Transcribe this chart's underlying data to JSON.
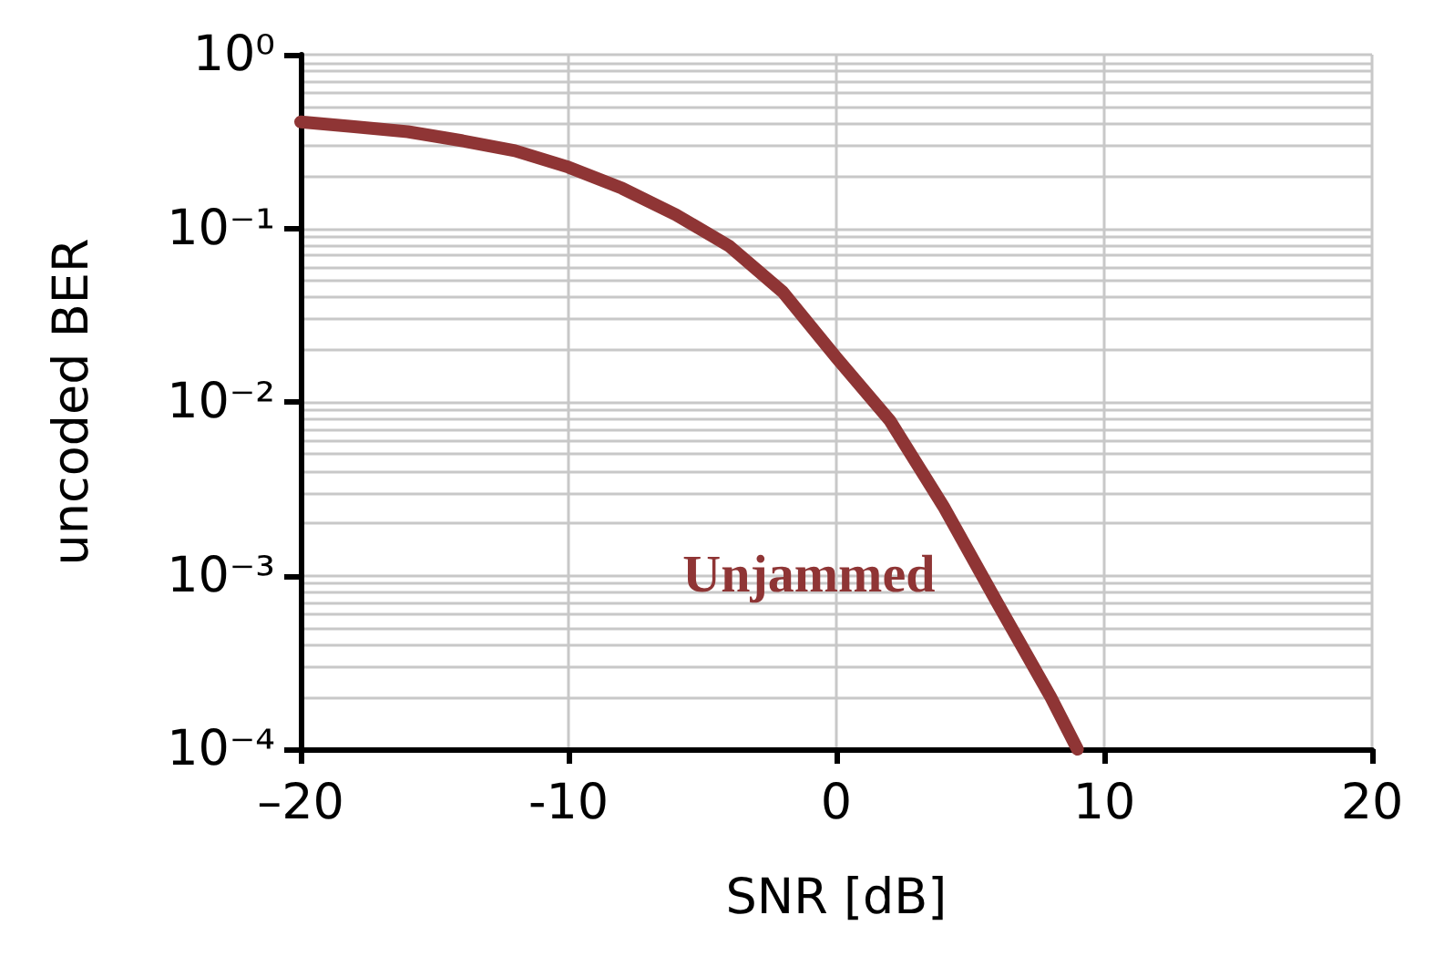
{
  "chart_data": {
    "type": "line",
    "xlabel": "SNR [dB]",
    "ylabel": "uncoded BER",
    "x": [
      -20,
      -18,
      -16,
      -14,
      -12,
      -10,
      -8,
      -6,
      -4,
      -2,
      0,
      2,
      4,
      6,
      8,
      9
    ],
    "series": [
      {
        "name": "Unjammed",
        "color": "#8f3535",
        "values": [
          0.41,
          0.385,
          0.36,
          0.32,
          0.28,
          0.225,
          0.17,
          0.12,
          0.079,
          0.043,
          0.018,
          0.0078,
          0.0025,
          0.0007,
          0.0002,
          0.0001
        ]
      }
    ],
    "xlim": [
      -20,
      20
    ],
    "xticks": [
      {
        "value": -20,
        "label": "–20"
      },
      -10,
      0,
      10,
      20
    ],
    "ylim": [
      0.0001,
      1
    ],
    "yticks": [
      {
        "value": 0.0001,
        "label": "10⁻⁴"
      },
      {
        "value": 0.0002,
        "label": null
      },
      {
        "value": 0.0003,
        "label": null
      },
      {
        "value": 0.0004,
        "label": null
      },
      {
        "value": 0.0005,
        "label": null
      },
      {
        "value": 0.0006,
        "label": null
      },
      {
        "value": 0.0007,
        "label": null
      },
      {
        "value": 0.0008,
        "label": null
      },
      {
        "value": 0.0009,
        "label": null
      },
      {
        "value": 0.001,
        "label": "10⁻³"
      },
      {
        "value": 0.002,
        "label": null
      },
      {
        "value": 0.003,
        "label": null
      },
      {
        "value": 0.004,
        "label": null
      },
      {
        "value": 0.005,
        "label": null
      },
      {
        "value": 0.006,
        "label": null
      },
      {
        "value": 0.007,
        "label": null
      },
      {
        "value": 0.008,
        "label": null
      },
      {
        "value": 0.009,
        "label": null
      },
      {
        "value": 0.01,
        "label": "10⁻²"
      },
      {
        "value": 0.02,
        "label": null
      },
      {
        "value": 0.03,
        "label": null
      },
      {
        "value": 0.04,
        "label": null
      },
      {
        "value": 0.05,
        "label": null
      },
      {
        "value": 0.06,
        "label": null
      },
      {
        "value": 0.07,
        "label": null
      },
      {
        "value": 0.08,
        "label": null
      },
      {
        "value": 0.09,
        "label": null
      },
      {
        "value": 0.1,
        "label": "10⁻¹"
      },
      {
        "value": 0.2,
        "label": null
      },
      {
        "value": 0.3,
        "label": null
      },
      {
        "value": 0.4,
        "label": null
      },
      {
        "value": 0.5,
        "label": null
      },
      {
        "value": 0.6,
        "label": null
      },
      {
        "value": 0.7,
        "label": null
      },
      {
        "value": 0.8,
        "label": null
      },
      {
        "value": 0.9,
        "label": null
      },
      {
        "value": 1,
        "label": "10⁰"
      }
    ],
    "log": "y",
    "grid": true,
    "marker": "none",
    "line_style": "solid"
  }
}
